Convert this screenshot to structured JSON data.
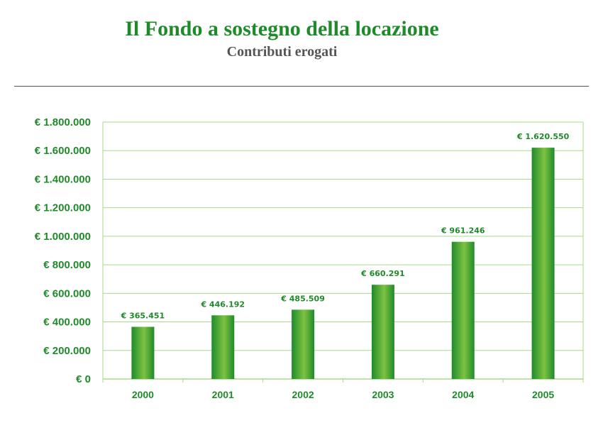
{
  "header": {
    "title": "Il Fondo a sostegno della locazione",
    "subtitle": "Contributi erogati"
  },
  "colors": {
    "accent": "#1f8a2a",
    "bar_dark": "#1e8b2a",
    "bar_light": "#7ec242",
    "grid": "#a9d98a",
    "subtitle": "#555555"
  },
  "chart_data": {
    "type": "bar",
    "title": "",
    "xlabel": "",
    "ylabel": "",
    "categories": [
      "2000",
      "2001",
      "2002",
      "2003",
      "2004",
      "2005"
    ],
    "values": [
      365451,
      446192,
      485509,
      660291,
      961246,
      1620550
    ],
    "data_labels": [
      "€ 365.451",
      "€ 446.192",
      "€ 485.509",
      "€ 660.291",
      "€ 961.246",
      "€ 1.620.550"
    ],
    "ylim": [
      0,
      1800000
    ],
    "yticks": [
      0,
      200000,
      400000,
      600000,
      800000,
      1000000,
      1200000,
      1400000,
      1600000,
      1800000
    ],
    "ytick_labels": [
      "€ 0",
      "€ 200.000",
      "€ 400.000",
      "€ 600.000",
      "€ 800.000",
      "€ 1.000.000",
      "€ 1.200.000",
      "€ 1.400.000",
      "€ 1.600.000",
      "€ 1.800.000"
    ],
    "grid": true,
    "legend": "none"
  }
}
